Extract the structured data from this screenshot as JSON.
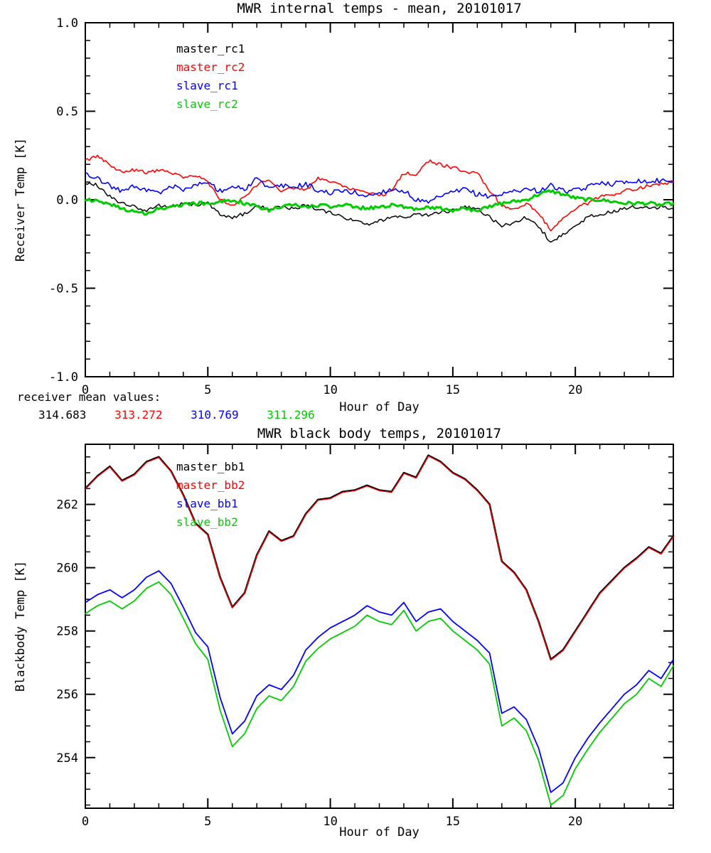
{
  "footer": {
    "label": "receiver mean values:",
    "values": [
      "314.683",
      "313.272",
      "310.769",
      "311.296"
    ]
  },
  "chart_data": [
    {
      "id": "receiver",
      "type": "line",
      "title": "MWR internal temps - mean, 20101017",
      "xlabel": "Hour of Day",
      "ylabel": "Receiver Temp [K]",
      "xlim": [
        0,
        24
      ],
      "ylim": [
        -1.0,
        1.0
      ],
      "xticks": [
        0,
        5,
        10,
        15,
        20
      ],
      "xtick_labels": [
        "0",
        "5",
        "10",
        "15",
        "20"
      ],
      "xminor": 1,
      "yticks": [
        -1.0,
        -0.5,
        0.0,
        0.5,
        1.0
      ],
      "ytick_labels": [
        "-1.0",
        "-0.5",
        "0.0",
        "0.5",
        "1.0"
      ],
      "yminor": 0.1,
      "x_start": 0,
      "x_step": 0.5,
      "grid": false,
      "legend_position": "upper-left-inside",
      "series": [
        {
          "name": "master_rc1",
          "color": "#000000",
          "noise": 0.01,
          "values": [
            0.1,
            0.08,
            0.02,
            -0.02,
            -0.04,
            -0.06,
            -0.03,
            -0.04,
            -0.02,
            -0.03,
            -0.02,
            -0.08,
            -0.1,
            -0.08,
            -0.04,
            -0.05,
            -0.04,
            -0.05,
            -0.03,
            -0.06,
            -0.07,
            -0.1,
            -0.12,
            -0.14,
            -0.12,
            -0.1,
            -0.1,
            -0.08,
            -0.09,
            -0.07,
            -0.06,
            -0.04,
            -0.05,
            -0.1,
            -0.15,
            -0.13,
            -0.1,
            -0.15,
            -0.24,
            -0.2,
            -0.15,
            -0.1,
            -0.08,
            -0.07,
            -0.05,
            -0.04,
            -0.05,
            -0.04,
            -0.05
          ]
        },
        {
          "name": "master_rc2",
          "color": "#ff0000",
          "noise": 0.01,
          "values": [
            0.22,
            0.25,
            0.2,
            0.15,
            0.17,
            0.15,
            0.17,
            0.15,
            0.13,
            0.14,
            0.1,
            0.0,
            -0.03,
            0.02,
            0.08,
            0.12,
            0.05,
            0.07,
            0.05,
            0.12,
            0.1,
            0.08,
            0.05,
            0.04,
            0.02,
            0.05,
            0.15,
            0.14,
            0.22,
            0.2,
            0.18,
            0.16,
            0.15,
            0.05,
            -0.03,
            -0.05,
            -0.02,
            -0.08,
            -0.17,
            -0.1,
            -0.05,
            -0.02,
            0.02,
            0.03,
            0.05,
            0.06,
            0.08,
            0.09,
            0.1
          ]
        },
        {
          "name": "slave_rc1",
          "color": "#0000ff",
          "noise": 0.014,
          "values": [
            0.15,
            0.12,
            0.08,
            0.05,
            0.08,
            0.05,
            0.04,
            0.08,
            0.06,
            0.08,
            0.1,
            0.05,
            0.08,
            0.06,
            0.12,
            0.06,
            0.08,
            0.07,
            0.09,
            0.05,
            0.04,
            0.05,
            0.04,
            0.02,
            0.04,
            0.06,
            0.05,
            0.0,
            -0.02,
            0.02,
            0.04,
            0.06,
            0.03,
            0.02,
            0.03,
            0.05,
            0.06,
            0.05,
            0.08,
            0.05,
            0.05,
            0.07,
            0.1,
            0.09,
            0.1,
            0.11,
            0.1,
            0.11,
            0.11
          ]
        },
        {
          "name": "slave_rc2",
          "color": "#00cc00",
          "noise": 0.01,
          "values": [
            0.0,
            -0.01,
            -0.02,
            -0.05,
            -0.07,
            -0.08,
            -0.05,
            -0.04,
            -0.03,
            -0.02,
            -0.02,
            -0.01,
            0.0,
            -0.02,
            -0.04,
            -0.06,
            -0.04,
            -0.03,
            -0.04,
            -0.03,
            -0.04,
            -0.03,
            -0.04,
            -0.05,
            -0.04,
            -0.03,
            -0.04,
            -0.05,
            -0.04,
            -0.05,
            -0.06,
            -0.05,
            -0.06,
            -0.04,
            -0.02,
            -0.01,
            0.0,
            0.03,
            0.05,
            0.03,
            0.01,
            0.0,
            0.0,
            -0.01,
            -0.02,
            -0.02,
            -0.02,
            -0.03,
            -0.02
          ]
        }
      ]
    },
    {
      "id": "blackbody",
      "type": "line",
      "title": "MWR black body temps, 20101017",
      "xlabel": "Hour of Day",
      "ylabel": "Blackbody Temp [K]",
      "xlim": [
        0,
        24
      ],
      "ylim": [
        252.4,
        263.9
      ],
      "xticks": [
        0,
        5,
        10,
        15,
        20
      ],
      "xtick_labels": [
        "0",
        "5",
        "10",
        "15",
        "20"
      ],
      "xminor": 1,
      "yticks": [
        254,
        256,
        258,
        260,
        262
      ],
      "ytick_labels": [
        "254",
        "256",
        "258",
        "260",
        "262"
      ],
      "yminor": 0.5,
      "x_start": 0,
      "x_step": 0.5,
      "grid": false,
      "legend_position": "upper-left-inside",
      "series": [
        {
          "name": "master_bb1",
          "color": "#000000",
          "noise": 0,
          "values": [
            262.5,
            262.9,
            263.2,
            262.75,
            262.95,
            263.35,
            263.5,
            263.05,
            262.3,
            261.4,
            261.05,
            259.7,
            258.75,
            259.2,
            260.4,
            261.15,
            260.85,
            261.0,
            261.7,
            262.15,
            262.2,
            262.4,
            262.45,
            262.6,
            262.45,
            262.4,
            263.0,
            262.85,
            263.55,
            263.35,
            263.0,
            262.8,
            262.45,
            262.0,
            260.2,
            259.85,
            259.3,
            258.3,
            257.1,
            257.4,
            258.0,
            258.6,
            259.2,
            259.6,
            260.0,
            260.3,
            260.65,
            260.45,
            261.0
          ]
        },
        {
          "name": "master_bb2",
          "color": "#ff0000",
          "noise": 0,
          "values": [
            262.48,
            262.88,
            263.18,
            262.73,
            262.93,
            263.33,
            263.48,
            263.03,
            262.28,
            261.38,
            261.03,
            259.68,
            258.73,
            259.18,
            260.38,
            261.13,
            260.83,
            260.98,
            261.68,
            262.13,
            262.18,
            262.38,
            262.43,
            262.58,
            262.43,
            262.38,
            262.98,
            262.83,
            263.53,
            263.33,
            262.98,
            262.78,
            262.43,
            261.98,
            260.18,
            259.83,
            259.28,
            258.28,
            257.08,
            257.38,
            257.98,
            258.58,
            259.18,
            259.58,
            259.98,
            260.28,
            260.63,
            260.43,
            260.98
          ]
        },
        {
          "name": "slave_bb1",
          "color": "#0000ff",
          "noise": 0,
          "values": [
            258.9,
            259.15,
            259.3,
            259.05,
            259.3,
            259.7,
            259.9,
            259.5,
            258.75,
            257.95,
            257.5,
            255.9,
            254.75,
            255.15,
            255.95,
            256.3,
            256.15,
            256.6,
            257.4,
            257.8,
            258.1,
            258.3,
            258.5,
            258.8,
            258.6,
            258.5,
            258.9,
            258.3,
            258.6,
            258.7,
            258.3,
            258.0,
            257.7,
            257.3,
            255.4,
            255.6,
            255.2,
            254.3,
            252.9,
            253.2,
            254.0,
            254.6,
            255.1,
            255.55,
            256.0,
            256.3,
            256.75,
            256.5,
            257.1
          ]
        },
        {
          "name": "slave_bb2",
          "color": "#00cc00",
          "noise": 0,
          "values": [
            258.55,
            258.8,
            258.95,
            258.7,
            258.95,
            259.35,
            259.55,
            259.15,
            258.4,
            257.6,
            257.1,
            255.5,
            254.35,
            254.75,
            255.55,
            255.95,
            255.8,
            256.25,
            257.05,
            257.45,
            257.75,
            257.95,
            258.15,
            258.5,
            258.3,
            258.2,
            258.65,
            258.0,
            258.3,
            258.4,
            258.0,
            257.7,
            257.4,
            256.95,
            255.0,
            255.25,
            254.85,
            253.9,
            252.5,
            252.8,
            253.65,
            254.25,
            254.8,
            255.25,
            255.7,
            256.0,
            256.5,
            256.25,
            256.9
          ]
        }
      ]
    }
  ]
}
